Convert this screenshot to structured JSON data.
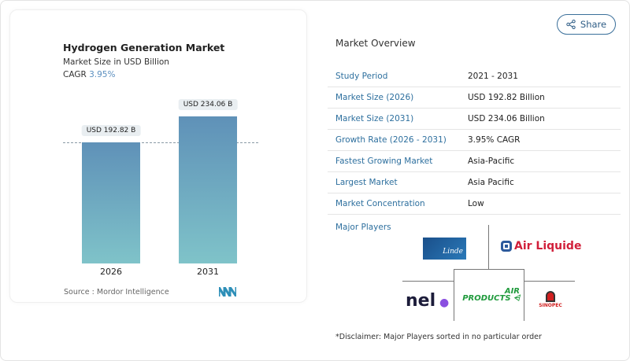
{
  "chart_card": {
    "title": "Hydrogen Generation Market",
    "subtitle": "Market Size in USD Billion",
    "cagr_label": "CAGR",
    "cagr_value": "3.95%",
    "source": "Source :  Mordor Intelligence",
    "logo": "Mordor Intelligence logo"
  },
  "chart_data": {
    "type": "bar",
    "categories": [
      "2026",
      "2031"
    ],
    "values": [
      192.82,
      234.06
    ],
    "data_labels": [
      "USD 192.82 B",
      "USD 234.06 B"
    ],
    "title": "Hydrogen Generation Market",
    "ylabel": "Market Size in USD Billion",
    "reference_line": 192.82,
    "colors": {
      "bar_top": "#5f91b8",
      "bar_bottom": "#7fc3c9"
    }
  },
  "share": {
    "label": "Share",
    "icon": "share-icon"
  },
  "overview": {
    "title": "Market Overview",
    "rows": [
      {
        "label": "Study Period",
        "value": "2021 - 2031"
      },
      {
        "label": "Market Size (2026)",
        "value": "USD 192.82 Billion"
      },
      {
        "label": "Market Size (2031)",
        "value": "USD 234.06 Billion"
      },
      {
        "label": "Growth Rate (2026 - 2031)",
        "value": "3.95% CAGR"
      },
      {
        "label": "Fastest Growing Market",
        "value": "Asia-Pacific"
      },
      {
        "label": "Largest Market",
        "value": "Asia Pacific"
      },
      {
        "label": "Market Concentration",
        "value": "Low"
      }
    ]
  },
  "players": {
    "title": "Major Players",
    "logos": [
      "Linde",
      "Air Liquide",
      "nel",
      "AIR PRODUCTS",
      "SINOPEC"
    ],
    "disclaimer": "*Disclaimer: Major Players sorted in no particular order"
  }
}
